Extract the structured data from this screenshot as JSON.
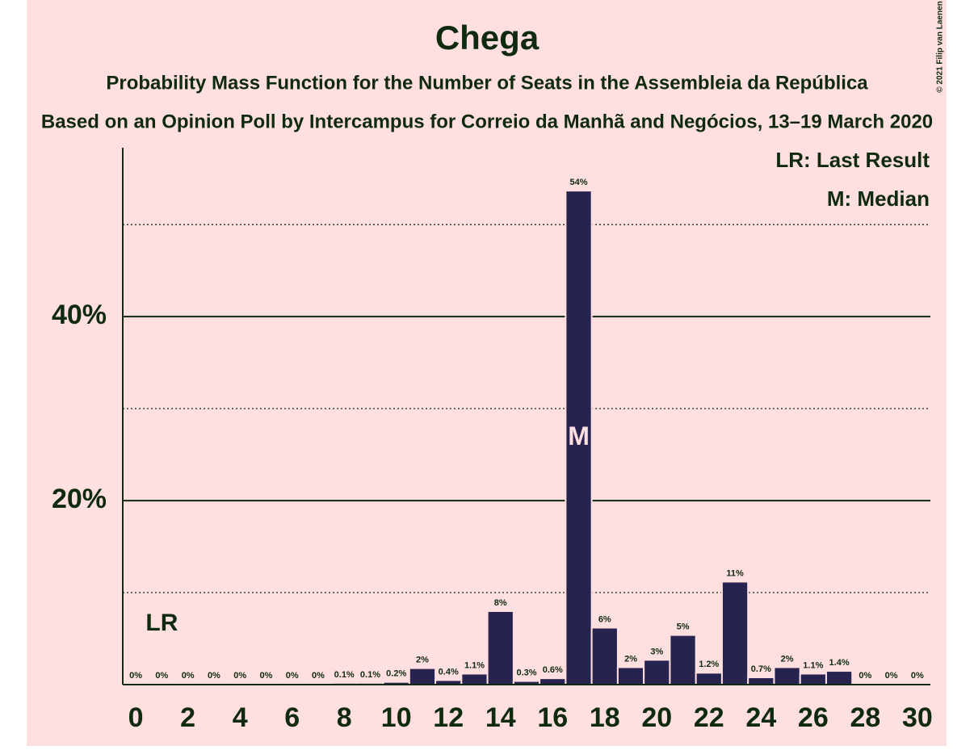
{
  "chart_data": {
    "type": "bar",
    "title": "Chega",
    "subtitle": "Probability Mass Function for the Number of Seats in the Assembleia da República",
    "subtitle2": "Based on an Opinion Poll by Intercampus for Correio da Manhã and Negócios, 13–19 March 2020",
    "x": [
      0,
      1,
      2,
      3,
      4,
      5,
      6,
      7,
      8,
      9,
      10,
      11,
      12,
      13,
      14,
      15,
      16,
      17,
      18,
      19,
      20,
      21,
      22,
      23,
      24,
      25,
      26,
      27,
      28,
      29,
      30
    ],
    "values": [
      0,
      0,
      0,
      0,
      0,
      0,
      0,
      0,
      0.1,
      0.1,
      0.2,
      1.7,
      0.4,
      1.1,
      7.9,
      0.3,
      0.6,
      53.6,
      6.1,
      1.8,
      2.6,
      5.3,
      1.2,
      11.1,
      0.7,
      1.8,
      1.1,
      1.4,
      0,
      0,
      0
    ],
    "value_labels": [
      "0%",
      "0%",
      "0%",
      "0%",
      "0%",
      "0%",
      "0%",
      "0%",
      "0.1%",
      "0.1%",
      "0.2%",
      "2%",
      "0.4%",
      "1.1%",
      "8%",
      "0.3%",
      "0.6%",
      "54%",
      "6%",
      "2%",
      "3%",
      "5%",
      "1.2%",
      "11%",
      "0.7%",
      "2%",
      "1.1%",
      "1.4%",
      "0%",
      "0%",
      "0%"
    ],
    "color": "#27234f",
    "xlim": [
      -0.5,
      30.5
    ],
    "xticks": [
      0,
      2,
      4,
      6,
      8,
      10,
      12,
      14,
      16,
      18,
      20,
      22,
      24,
      26,
      28,
      30
    ],
    "ylim": [
      0,
      58
    ],
    "yticks": [
      {
        "value": 20,
        "label": "20%"
      },
      {
        "value": 40,
        "label": "40%"
      }
    ],
    "minor_yticks": [
      10,
      30,
      50
    ],
    "last_result": {
      "x": 1,
      "label": "LR"
    },
    "median": {
      "x": 17,
      "label": "M"
    },
    "legend": [
      "LR: Last Result",
      "M: Median"
    ],
    "copyright": "© 2021 Filip van Laenen"
  }
}
